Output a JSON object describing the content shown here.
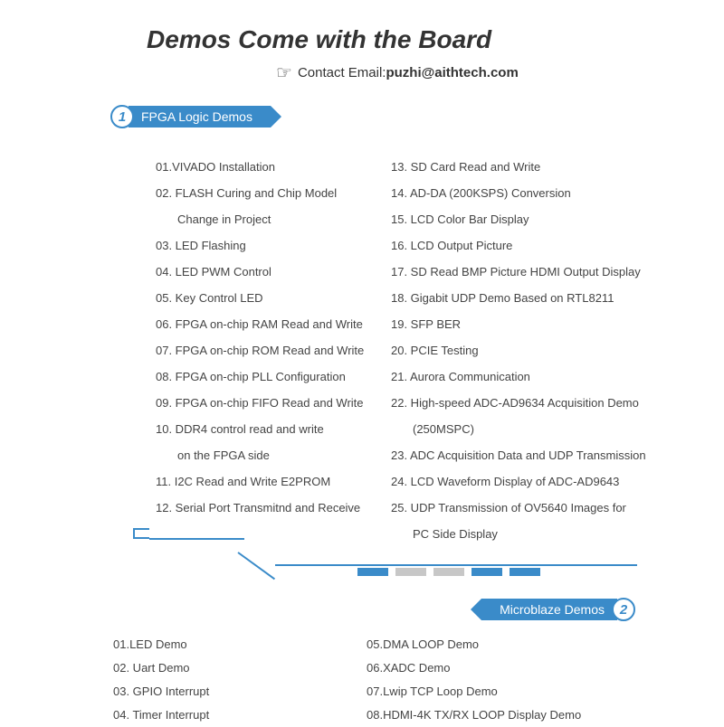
{
  "header": {
    "title": "Demos Come with the Board",
    "contact_label": "Contact Email: ",
    "contact_email": "puzhi@aithtech.com"
  },
  "section1": {
    "number": "1",
    "label": "FPGA Logic Demos",
    "col_left": [
      "01.VIVADO Installation",
      "02. FLASH Curing and Chip Model",
      "Change in Project",
      "03. LED Flashing",
      "04. LED PWM Control",
      "05. Key Control LED",
      "06. FPGA on-chip RAM Read and Write",
      "07. FPGA on-chip ROM Read and Write",
      "08. FPGA on-chip PLL Configuration",
      "09. FPGA on-chip FIFO Read and Write",
      "10. DDR4 control read and write",
      "on the FPGA side",
      "11. I2C Read and Write E2PROM",
      "12. Serial Port Transmitnd and Receive"
    ],
    "col_left_indent": [
      2,
      11
    ],
    "col_right": [
      "13. SD Card Read and Write",
      "14. AD-DA (200KSPS) Conversion",
      "15. LCD Color Bar Display",
      "16. LCD Output Picture",
      "17. SD Read BMP Picture HDMI Output Display",
      "18. Gigabit UDP Demo Based on RTL8211",
      "19. SFP BER",
      "20. PCIE Testing",
      "21. Aurora Communication",
      "22. High-speed ADC-AD9634  Acquisition Demo",
      "(250MSPC)",
      "23. ADC Acquisition Data and UDP Transmission",
      "24. LCD Waveform Display of ADC-AD9643",
      "25. UDP Transmission of OV5640 Images for",
      "PC Side Display"
    ],
    "col_right_indent": [
      10,
      14
    ]
  },
  "section2": {
    "number": "2",
    "label": "Microblaze Demos",
    "col_left": [
      "01.LED Demo",
      "02. Uart Demo",
      "03. GPIO Interrupt",
      "04. Timer Interrupt"
    ],
    "col_right": [
      "05.DMA LOOP Demo",
      "06.XADC Demo",
      "07.Lwip TCP Loop Demo",
      "08.HDMI-4K TX/RX LOOP Display Demo"
    ]
  },
  "style": {
    "accent_color": "#3a8bc9",
    "text_color": "#444444",
    "title_color": "#333333",
    "background": "#ffffff",
    "dash_colors": [
      "#3a8bc9",
      "#c7c7c7",
      "#c7c7c7",
      "#3a8bc9",
      "#3a8bc9"
    ],
    "title_fontsize": 28,
    "body_fontsize": 13,
    "body_lineheight": 29
  }
}
